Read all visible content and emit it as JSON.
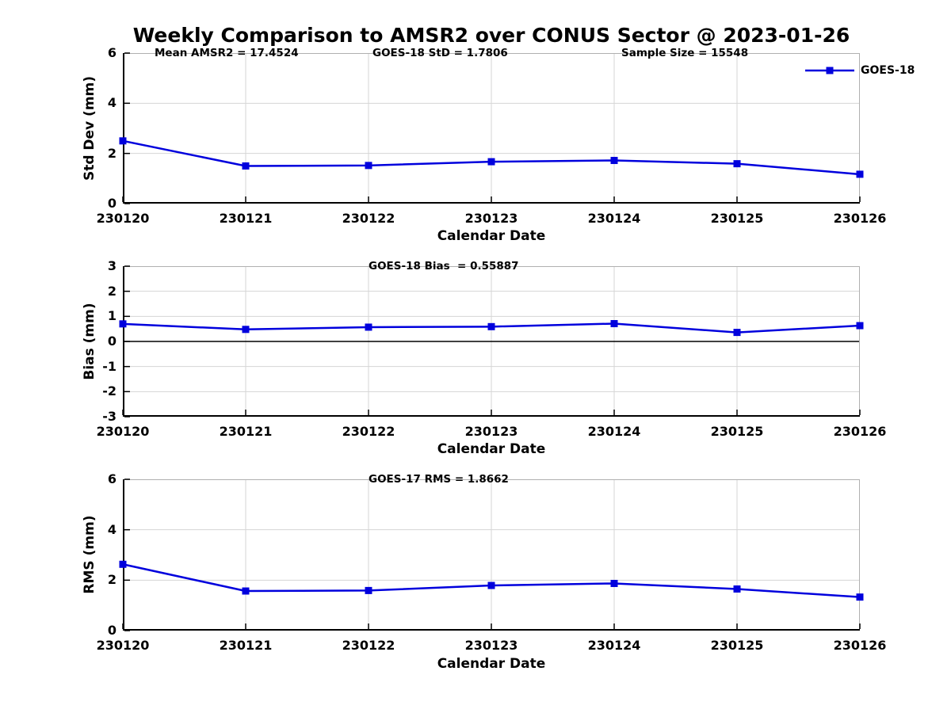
{
  "title": "Weekly Comparison to AMSR2 over CONUS Sector @ 2023-01-26",
  "legend": {
    "label": "GOES-18"
  },
  "colors": {
    "series": "#0000dd",
    "grid": "#d5d5d5",
    "box": "#b0b0b0",
    "axis": "#000000",
    "zero_line": "#000000"
  },
  "chart_data": [
    {
      "type": "line",
      "name": "std-dev-panel",
      "ylabel": "Std Dev (mm)",
      "xlabel": "Calendar Date",
      "ylim": [
        0,
        6
      ],
      "yticks": [
        0,
        2,
        4,
        6
      ],
      "grid": true,
      "zero_line": false,
      "categories": [
        "230120",
        "230121",
        "230122",
        "230123",
        "230124",
        "230125",
        "230126"
      ],
      "series": [
        {
          "name": "GOES-18",
          "color": "#0000dd",
          "marker": "square",
          "values": [
            2.5,
            1.5,
            1.52,
            1.67,
            1.72,
            1.59,
            1.17
          ]
        }
      ],
      "annotations": [
        {
          "text": "Mean AMSR2 = 17.4524"
        },
        {
          "text": "GOES-18 StD = 1.7806"
        },
        {
          "text": "Sample Size = 15548"
        }
      ],
      "legend": {
        "label": "GOES-18",
        "position": "top-right-outside"
      }
    },
    {
      "type": "line",
      "name": "bias-panel",
      "ylabel": "Bias (mm)",
      "xlabel": "Calendar Date",
      "ylim": [
        -3,
        3
      ],
      "yticks": [
        -3,
        -2,
        -1,
        0,
        1,
        2,
        3
      ],
      "grid": true,
      "zero_line": true,
      "categories": [
        "230120",
        "230121",
        "230122",
        "230123",
        "230124",
        "230125",
        "230126"
      ],
      "series": [
        {
          "name": "GOES-18",
          "color": "#0000dd",
          "marker": "square",
          "values": [
            0.7,
            0.48,
            0.57,
            0.59,
            0.71,
            0.36,
            0.63
          ]
        }
      ],
      "annotations": [
        {
          "text": "GOES-18 Bias  = 0.55887"
        }
      ]
    },
    {
      "type": "line",
      "name": "rms-panel",
      "ylabel": "RMS (mm)",
      "xlabel": "Calendar Date",
      "ylim": [
        0,
        6
      ],
      "yticks": [
        0,
        2,
        4,
        6
      ],
      "grid": true,
      "zero_line": false,
      "categories": [
        "230120",
        "230121",
        "230122",
        "230123",
        "230124",
        "230125",
        "230126"
      ],
      "series": [
        {
          "name": "GOES-18",
          "color": "#0000dd",
          "marker": "square",
          "values": [
            2.63,
            1.57,
            1.59,
            1.79,
            1.87,
            1.65,
            1.33
          ]
        }
      ],
      "annotations": [
        {
          "text": "GOES-17 RMS = 1.8662"
        }
      ]
    }
  ]
}
